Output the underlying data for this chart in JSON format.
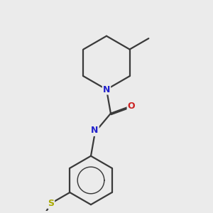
{
  "background_color": "#ebebeb",
  "atom_colors": {
    "N": "#2222cc",
    "O": "#cc2222",
    "S": "#aaaa00",
    "C": "#3a3a3a",
    "H": "#888888"
  },
  "bond_color": "#3a3a3a",
  "bond_width": 1.6,
  "figsize": [
    3.0,
    3.0
  ],
  "dpi": 100
}
